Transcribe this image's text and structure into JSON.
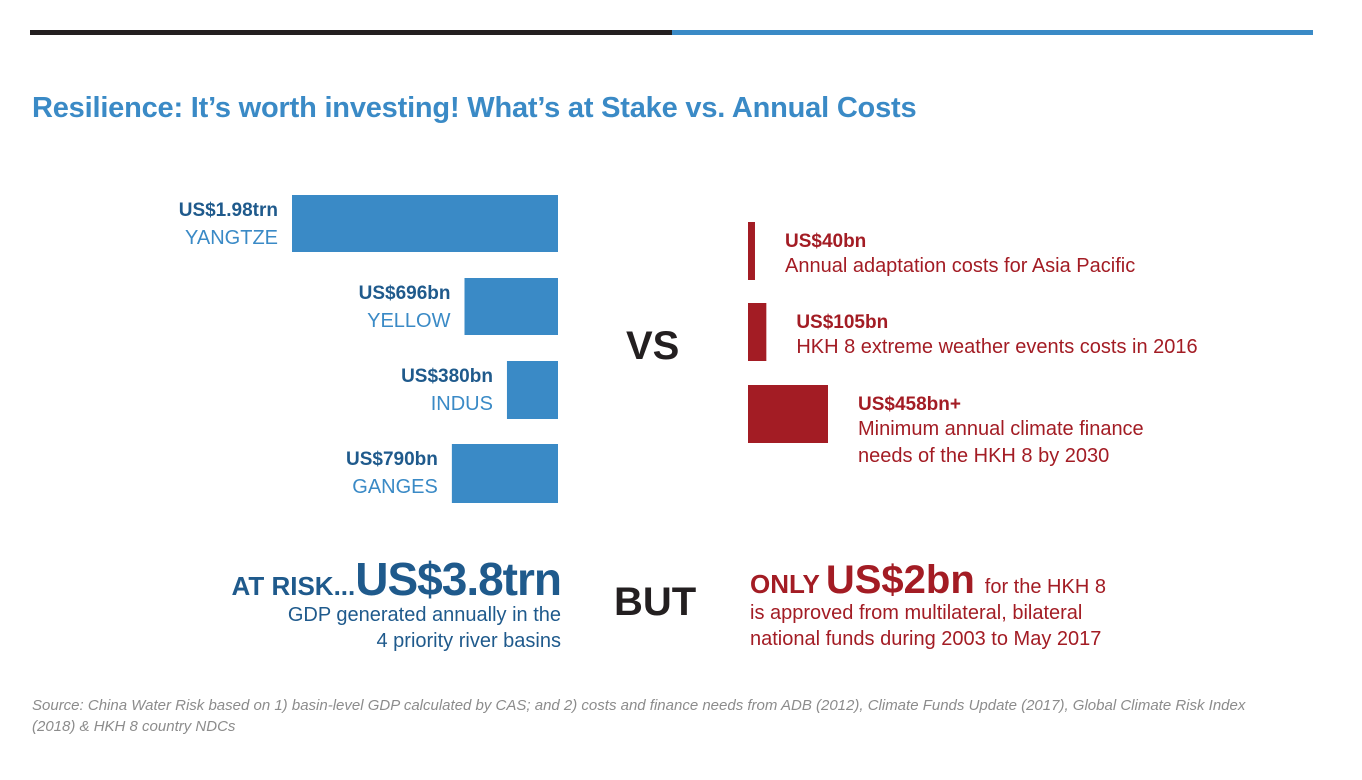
{
  "title": "Resilience: It’s worth investing! What’s at Stake vs. Annual Costs",
  "chart_data": [
    {
      "type": "bar",
      "orientation": "horizontal",
      "categories": [
        "YANGTZE",
        "YELLOW",
        "INDUS",
        "GANGES"
      ],
      "value_labels": [
        "US$1.98trn",
        "US$696bn",
        "US$380bn",
        "US$790bn"
      ],
      "values": [
        1980,
        696,
        380,
        790
      ],
      "unit": "US$bn",
      "color": "#3a8ac6"
    },
    {
      "type": "bar",
      "orientation": "horizontal",
      "categories": [
        "Annual adaptation costs for Asia Pacific",
        "HKH 8 extreme weather events costs in 2016",
        "Minimum annual climate finance needs of the HKH 8 by 2030"
      ],
      "value_labels": [
        "US$40bn",
        "US$105bn",
        "US$458bn+"
      ],
      "values": [
        40,
        105,
        458
      ],
      "unit": "US$bn",
      "color": "#a31c24"
    }
  ],
  "costs_desc_lines": [
    [
      "Annual adaptation costs for Asia Pacific"
    ],
    [
      "HKH 8 extreme weather events costs in 2016"
    ],
    [
      "Minimum annual climate finance",
      "needs of the HKH 8 by 2030"
    ]
  ],
  "vs_label": "VS",
  "but_label": "BUT",
  "at_risk": {
    "label": "AT RISK...",
    "amount": "US$3.8trn",
    "desc_line1": "GDP generated annually in the",
    "desc_line2": "4 priority river basins"
  },
  "only": {
    "label": "ONLY",
    "amount": "US$2bn",
    "tail": "for the HKH 8",
    "desc_line1": "is approved from multilateral, bilateral",
    "desc_line2": "national funds during 2003 to May 2017"
  },
  "source": "Source: China Water Risk based on 1) basin-level GDP calculated by CAS; and 2) costs and finance needs from ADB (2012), Climate Funds Update (2017), Global Climate Risk Index (2018) & HKH 8 country NDCs",
  "colors": {
    "blue": "#3a8ac6",
    "dark_blue": "#1f5a8c",
    "red": "#a31c24",
    "dark": "#231f20"
  }
}
